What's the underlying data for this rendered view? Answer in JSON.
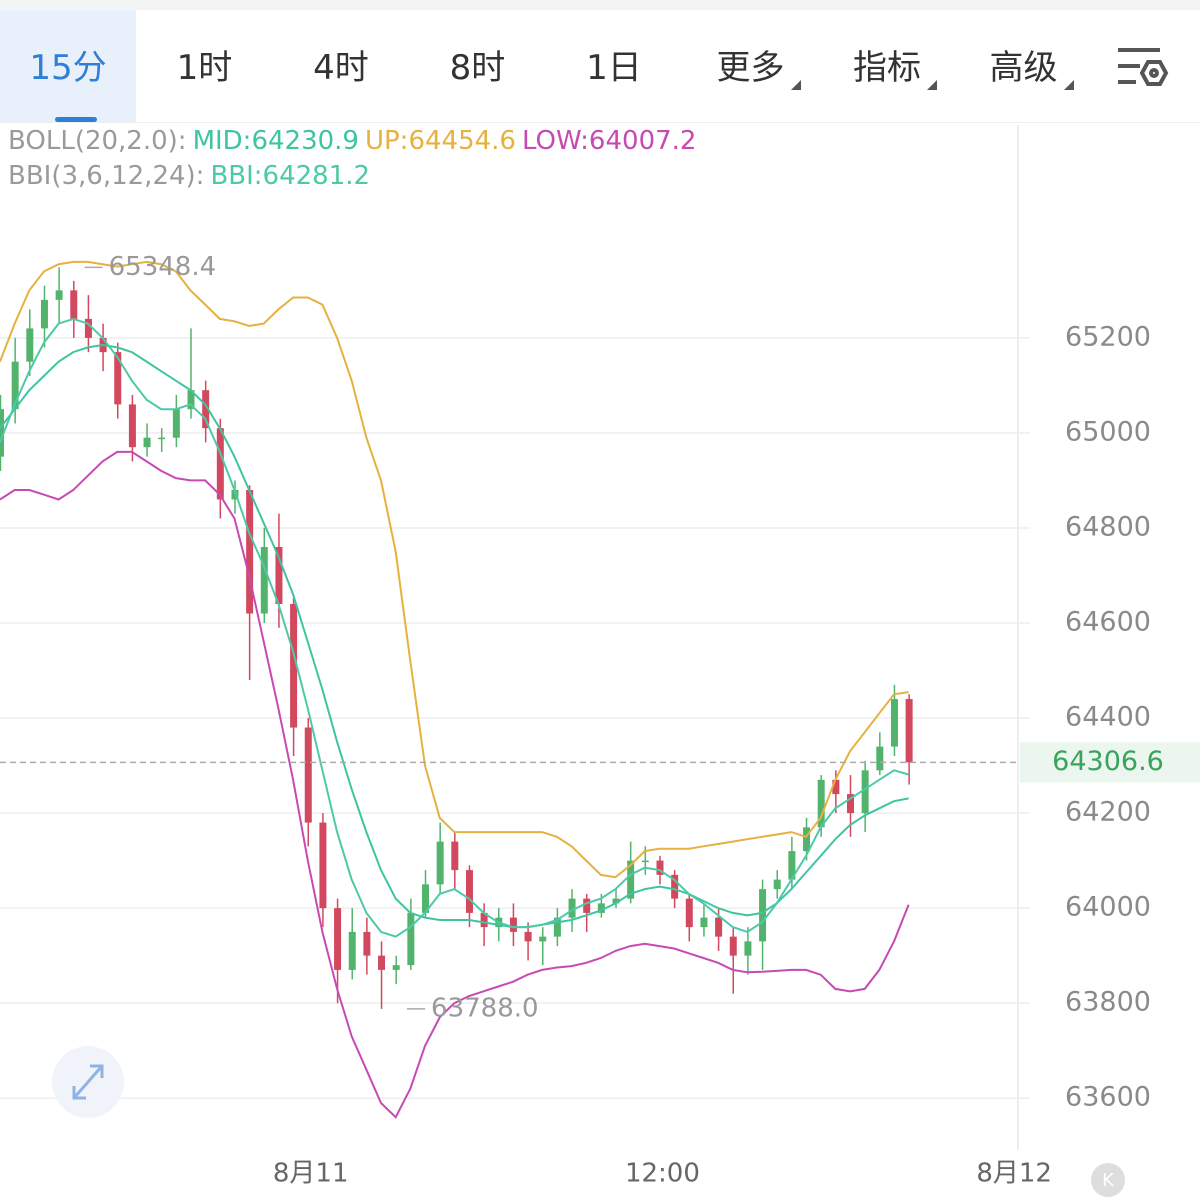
{
  "tabs": [
    {
      "label": "15分",
      "active": true
    },
    {
      "label": "1时"
    },
    {
      "label": "4时"
    },
    {
      "label": "8时"
    },
    {
      "label": "1日"
    },
    {
      "label": "更多",
      "menu": true
    },
    {
      "label": "指标",
      "menu": true
    },
    {
      "label": "高级",
      "menu": true
    }
  ],
  "chart_data": {
    "type": "candlestick",
    "indicator_legend": [
      {
        "label": "BOLL(20,2.0):",
        "items": [
          {
            "label": "MID:64230.9",
            "color": "#3fc4a2"
          },
          {
            "label": "UP:64454.6",
            "color": "#e6b13e"
          },
          {
            "label": "LOW:64007.2",
            "color": "#c74ab4"
          }
        ]
      },
      {
        "label": "BBI(3,6,12,24):",
        "items": [
          {
            "label": "BBI:64281.2",
            "color": "#4ccaa8"
          }
        ]
      }
    ],
    "candles": {
      "open": [
        64950,
        65050,
        65150,
        65220,
        65280,
        65300,
        65240,
        65200,
        65170,
        65060,
        64970,
        64990,
        64990,
        65050,
        65090,
        65010,
        64860,
        64880,
        64620,
        64760,
        64640,
        64380,
        64180,
        64000,
        63870,
        63950,
        63900,
        63870,
        63880,
        63990,
        64050,
        64140,
        64080,
        63990,
        63960,
        63980,
        63950,
        63930,
        63940,
        63980,
        64020,
        63990,
        64010,
        64020,
        64100,
        64100,
        64070,
        64020,
        63960,
        63980,
        63940,
        63900,
        63930,
        64040,
        64060,
        64120,
        64170,
        64270,
        64240,
        64200,
        64290,
        64340,
        64440
      ],
      "high": [
        65080,
        65200,
        65260,
        65310,
        65348.4,
        65320,
        65290,
        65230,
        65190,
        65080,
        65020,
        65010,
        65080,
        65220,
        65110,
        65030,
        64900,
        64890,
        64800,
        64830,
        64660,
        64400,
        64200,
        64020,
        64000,
        63980,
        63930,
        63900,
        64020,
        64080,
        64180,
        64160,
        64090,
        64010,
        64000,
        64010,
        63970,
        63960,
        64000,
        64040,
        64030,
        64030,
        64040,
        64140,
        64130,
        64110,
        64080,
        64030,
        64010,
        64000,
        63960,
        63960,
        64060,
        64080,
        64150,
        64190,
        64280,
        64290,
        64280,
        64310,
        64370,
        64470,
        64450
      ],
      "low": [
        64920,
        65020,
        65120,
        65180,
        65230,
        65200,
        65170,
        65130,
        65030,
        64940,
        64950,
        64960,
        64970,
        65030,
        64980,
        64820,
        64830,
        64480,
        64600,
        64590,
        64320,
        64130,
        63960,
        63800,
        63850,
        63860,
        63788.0,
        63840,
        63870,
        63980,
        64030,
        64040,
        63960,
        63920,
        63930,
        63920,
        63890,
        63880,
        63920,
        63950,
        63950,
        63980,
        64000,
        64010,
        64070,
        64050,
        64000,
        63930,
        63940,
        63910,
        63820,
        63860,
        63870,
        64020,
        64040,
        64100,
        64150,
        64200,
        64150,
        64160,
        64280,
        64320,
        64260
      ],
      "close": [
        65050,
        65150,
        65220,
        65280,
        65300,
        65240,
        65200,
        65170,
        65060,
        64970,
        64990,
        64990,
        65050,
        65090,
        65010,
        64860,
        64880,
        64620,
        64760,
        64640,
        64380,
        64180,
        64000,
        63870,
        63950,
        63900,
        63870,
        63880,
        63990,
        64050,
        64140,
        64080,
        63990,
        63960,
        63980,
        63950,
        63930,
        63940,
        63980,
        64020,
        63990,
        64010,
        64020,
        64100,
        64100,
        64070,
        64020,
        63960,
        63980,
        63940,
        63900,
        63930,
        64040,
        64060,
        64120,
        64170,
        64270,
        64240,
        64200,
        64290,
        64340,
        64440,
        64306.6
      ]
    },
    "up_color": "#52b46c",
    "down_color": "#d2485e",
    "lines": [
      {
        "color": "#e6b13e",
        "values": [
          65150,
          65230,
          65300,
          65340,
          65355,
          65360,
          65360,
          65355,
          65350,
          65355,
          65360,
          65355,
          65340,
          65300,
          65270,
          65240,
          65235,
          65225,
          65230,
          65260,
          65285,
          65285,
          65270,
          65200,
          65110,
          64990,
          64900,
          64750,
          64520,
          64300,
          64190,
          64160,
          64160,
          64160,
          64160,
          64160,
          64160,
          64160,
          64150,
          64130,
          64100,
          64070,
          64065,
          64090,
          64120,
          64125,
          64125,
          64125,
          64130,
          64135,
          64140,
          64145,
          64150,
          64155,
          64160,
          64150,
          64190,
          64270,
          64330,
          64370,
          64410,
          64450,
          64454.6
        ]
      },
      {
        "color": "#3fc4a2",
        "values": [
          65010,
          65050,
          65090,
          65120,
          65150,
          65170,
          65180,
          65185,
          65180,
          65170,
          65150,
          65130,
          65110,
          65090,
          65060,
          65010,
          64950,
          64880,
          64810,
          64740,
          64660,
          64560,
          64460,
          64350,
          64250,
          64160,
          64080,
          64020,
          63990,
          63980,
          63975,
          63975,
          63975,
          63970,
          63965,
          63960,
          63960,
          63965,
          63970,
          63975,
          63985,
          63995,
          64010,
          64030,
          64040,
          64045,
          64040,
          64030,
          64015,
          64000,
          63990,
          63985,
          63990,
          64010,
          64040,
          64075,
          64110,
          64145,
          64175,
          64195,
          64210,
          64225,
          64230.9
        ]
      },
      {
        "color": "#c74ab4",
        "values": [
          64860,
          64880,
          64880,
          64870,
          64860,
          64880,
          64910,
          64940,
          64960,
          64960,
          64940,
          64920,
          64905,
          64900,
          64900,
          64870,
          64820,
          64700,
          64560,
          64420,
          64270,
          64100,
          63950,
          63830,
          63730,
          63660,
          63590,
          63560,
          63620,
          63710,
          63770,
          63800,
          63815,
          63825,
          63835,
          63845,
          63860,
          63870,
          63875,
          63878,
          63885,
          63895,
          63910,
          63920,
          63925,
          63920,
          63915,
          63905,
          63895,
          63885,
          63870,
          63865,
          63866,
          63868,
          63870,
          63870,
          63860,
          63830,
          63825,
          63830,
          63870,
          63930,
          64007.2
        ]
      },
      {
        "color": "#4ccaa8",
        "values": [
          64980,
          65060,
          65130,
          65190,
          65230,
          65240,
          65230,
          65200,
          65160,
          65110,
          65070,
          65050,
          65050,
          65060,
          65030,
          64960,
          64880,
          64790,
          64720,
          64640,
          64540,
          64420,
          64290,
          64160,
          64060,
          63990,
          63950,
          63940,
          63960,
          63990,
          64030,
          64040,
          64020,
          63990,
          63970,
          63960,
          63960,
          63965,
          63975,
          63995,
          64010,
          64020,
          64040,
          64070,
          64085,
          64080,
          64060,
          64030,
          64010,
          63985,
          63960,
          63950,
          63970,
          64010,
          64060,
          64110,
          64170,
          64210,
          64230,
          64250,
          64270,
          64290,
          64281.2
        ]
      }
    ],
    "ylim": [
      63491,
      65648
    ],
    "yticks": [
      63600,
      63800,
      64000,
      64200,
      64400,
      64600,
      64800,
      65000,
      65200
    ],
    "xlim": [
      0,
      69.6
    ],
    "xticks": [
      {
        "value": 21.2,
        "label": "8月11"
      },
      {
        "value": 45.2,
        "label": "12:00"
      },
      {
        "value": 69.2,
        "label": "8月12"
      }
    ],
    "annotations": [
      {
        "x": 4,
        "value": 65348.4,
        "label": "65348.4"
      },
      {
        "x": 26,
        "value": 63788.0,
        "label": "63788.0"
      }
    ],
    "last_price": {
      "value": 64306.6,
      "label": "64306.6"
    },
    "grid": true
  }
}
